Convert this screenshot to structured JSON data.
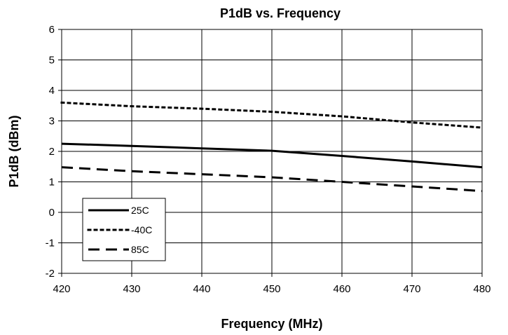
{
  "chart_data": {
    "type": "line",
    "title": "P1dB vs. Frequency",
    "xlabel": "Frequency (MHz)",
    "ylabel": "P1dB (dBm)",
    "xlim": [
      420,
      480
    ],
    "ylim": [
      -2,
      6
    ],
    "xticks": [
      420,
      430,
      440,
      450,
      460,
      470,
      480
    ],
    "yticks": [
      -2,
      -1,
      0,
      1,
      2,
      3,
      4,
      5,
      6
    ],
    "grid": true,
    "legend_position": "bottom-left",
    "series": [
      {
        "name": "25C",
        "style": "solid",
        "color": "#000000",
        "x": [
          420,
          430,
          440,
          450,
          460,
          470,
          480
        ],
        "values": [
          2.25,
          2.18,
          2.1,
          2.02,
          1.85,
          1.67,
          1.48
        ]
      },
      {
        "name": "-40C",
        "style": "dotted",
        "color": "#000000",
        "x": [
          420,
          430,
          440,
          450,
          460,
          470,
          480
        ],
        "values": [
          3.6,
          3.48,
          3.4,
          3.3,
          3.15,
          2.95,
          2.78
        ]
      },
      {
        "name": "85C",
        "style": "dashed",
        "color": "#000000",
        "x": [
          420,
          430,
          440,
          450,
          460,
          470,
          480
        ],
        "values": [
          1.48,
          1.35,
          1.25,
          1.15,
          1.0,
          0.85,
          0.7
        ]
      }
    ]
  }
}
